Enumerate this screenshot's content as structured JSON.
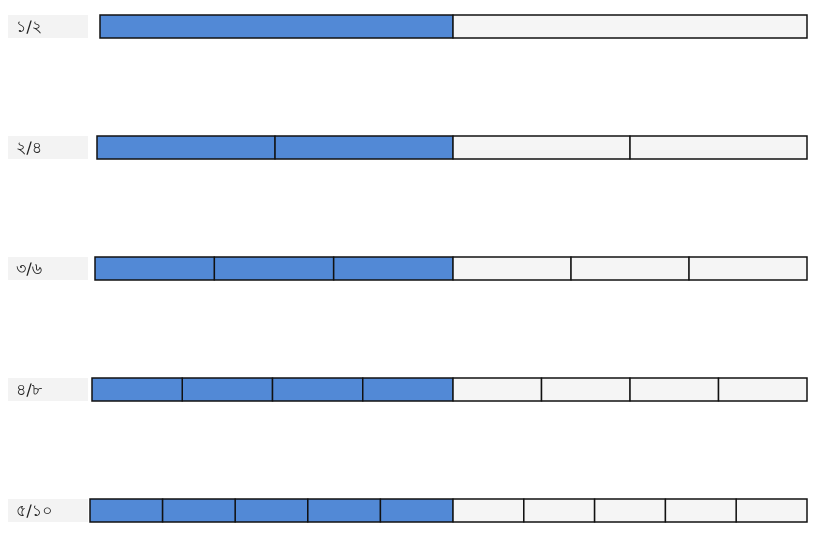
{
  "rows": [
    {
      "label": "১/২"
    },
    {
      "label": "২/৪"
    },
    {
      "label": "৩/৬"
    },
    {
      "label": "৪/৮"
    },
    {
      "label": "৫/১০"
    }
  ]
}
